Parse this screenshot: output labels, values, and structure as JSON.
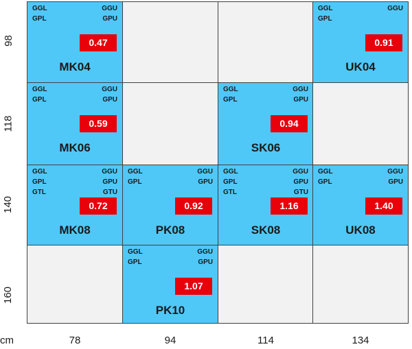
{
  "x_unit": "cm",
  "x_labels": [
    "78",
    "94",
    "114",
    "134"
  ],
  "y_labels": [
    "98",
    "118",
    "140",
    "160"
  ],
  "cells": [
    {
      "row": 0,
      "col": 0,
      "left_codes": [
        "GGL",
        "GPL"
      ],
      "right_codes": [
        "GGU",
        "GPU"
      ],
      "value": "0.47",
      "name": "MK04"
    },
    {
      "row": 0,
      "col": 3,
      "left_codes": [
        "GGL",
        "GPL"
      ],
      "right_codes": [
        "GGU"
      ],
      "value": "0.91",
      "name": "UK04"
    },
    {
      "row": 1,
      "col": 0,
      "left_codes": [
        "GGL",
        "GPL"
      ],
      "right_codes": [
        "GGU",
        "GPU"
      ],
      "value": "0.59",
      "name": "MK06"
    },
    {
      "row": 1,
      "col": 2,
      "left_codes": [
        "GGL",
        "GPL"
      ],
      "right_codes": [
        "GGU",
        "GPU"
      ],
      "value": "0.94",
      "name": "SK06"
    },
    {
      "row": 2,
      "col": 0,
      "left_codes": [
        "GGL",
        "GPL",
        "GTL"
      ],
      "right_codes": [
        "GGU",
        "GPU",
        "GTU"
      ],
      "value": "0.72",
      "name": "MK08"
    },
    {
      "row": 2,
      "col": 1,
      "left_codes": [
        "GGL",
        "GPL"
      ],
      "right_codes": [
        "GGU",
        "GPU"
      ],
      "value": "0.92",
      "name": "PK08"
    },
    {
      "row": 2,
      "col": 2,
      "left_codes": [
        "GGL",
        "GPL",
        "GTL"
      ],
      "right_codes": [
        "GGU",
        "GPU",
        "GTU"
      ],
      "value": "1.16",
      "name": "SK08"
    },
    {
      "row": 2,
      "col": 3,
      "left_codes": [
        "GGL",
        "GPL"
      ],
      "right_codes": [
        "GGU",
        "GPU"
      ],
      "value": "1.40",
      "name": "UK08"
    },
    {
      "row": 3,
      "col": 1,
      "left_codes": [
        "GGL",
        "GPL"
      ],
      "right_codes": [
        "GGU",
        "GPU"
      ],
      "value": "1.07",
      "name": "PK10"
    }
  ],
  "colors": {
    "cell_fill": "#4fc8f8",
    "empty_fill": "#f2f2f2",
    "value_fill": "#e8000b"
  }
}
